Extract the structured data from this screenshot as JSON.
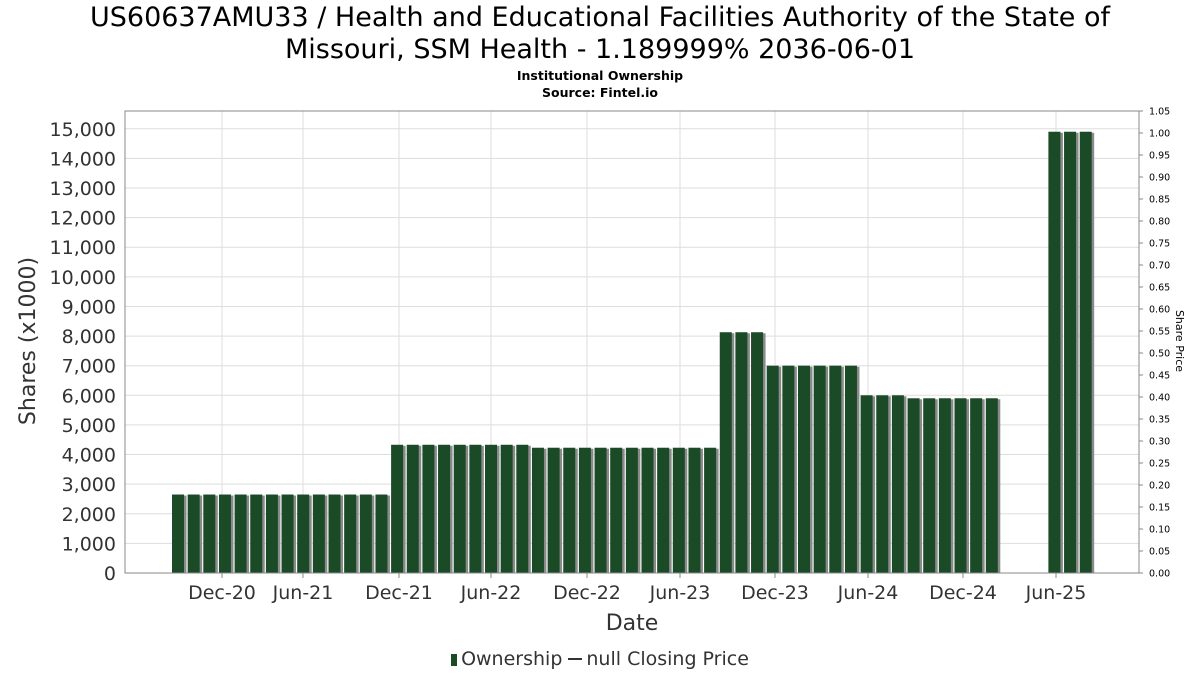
{
  "title_line1": "US60637AMU33 / Health and Educational Facilities Authority of the State of",
  "title_line2": "Missouri, SSM Health - 1.189999% 2036-06-01",
  "subtitle1": "Institutional Ownership",
  "subtitle2": "Source: Fintel.io",
  "legend": {
    "ownership": "Ownership",
    "price": "null Closing Price"
  },
  "colors": {
    "bar": "#1b4a26",
    "bar_shadow": "#8a8a8a",
    "grid": "#dddddd",
    "axis": "#888888"
  },
  "chart_data": {
    "type": "bar",
    "title": "US60637AMU33 / Health and Educational Facilities Authority of the State of Missouri, SSM Health - 1.189999% 2036-06-01",
    "subtitle": "Institutional Ownership — Source: Fintel.io",
    "xlabel": "Date",
    "ylabel": "Shares (x1000)",
    "y2label": "Share Price",
    "ylim": [
      0,
      15600
    ],
    "y2lim": [
      0,
      1.05
    ],
    "yticks": [
      0,
      1000,
      2000,
      3000,
      4000,
      5000,
      6000,
      7000,
      8000,
      9000,
      10000,
      11000,
      12000,
      13000,
      14000,
      15000
    ],
    "y2ticks": [
      0.0,
      0.05,
      0.1,
      0.15,
      0.2,
      0.25,
      0.3,
      0.35,
      0.4,
      0.45,
      0.5,
      0.55,
      0.6,
      0.65,
      0.7,
      0.75,
      0.8,
      0.85,
      0.9,
      0.95,
      1.0,
      1.05
    ],
    "xticks": [
      "Dec-20",
      "Jun-21",
      "Dec-21",
      "Jun-22",
      "Dec-22",
      "Jun-23",
      "Dec-23",
      "Jun-24",
      "Dec-24",
      "Jun-25"
    ],
    "grid": true,
    "legend_position": "bottom",
    "series": [
      {
        "name": "Ownership",
        "values": [
          2650,
          2650,
          2650,
          2650,
          2650,
          2650,
          2650,
          2650,
          2650,
          2650,
          2650,
          2650,
          2650,
          2650,
          4330,
          4330,
          4330,
          4330,
          4330,
          4330,
          4330,
          4330,
          4330,
          4230,
          4230,
          4230,
          4230,
          4230,
          4230,
          4230,
          4230,
          4230,
          4230,
          4230,
          4230,
          8130,
          8130,
          8130,
          7000,
          7000,
          7000,
          7000,
          7000,
          7000,
          6000,
          6000,
          6000,
          5900,
          5900,
          5900,
          5900,
          5900,
          5900,
          null,
          null,
          null,
          14900,
          14900,
          14900
        ]
      },
      {
        "name": "null Closing Price",
        "values": []
      }
    ]
  }
}
